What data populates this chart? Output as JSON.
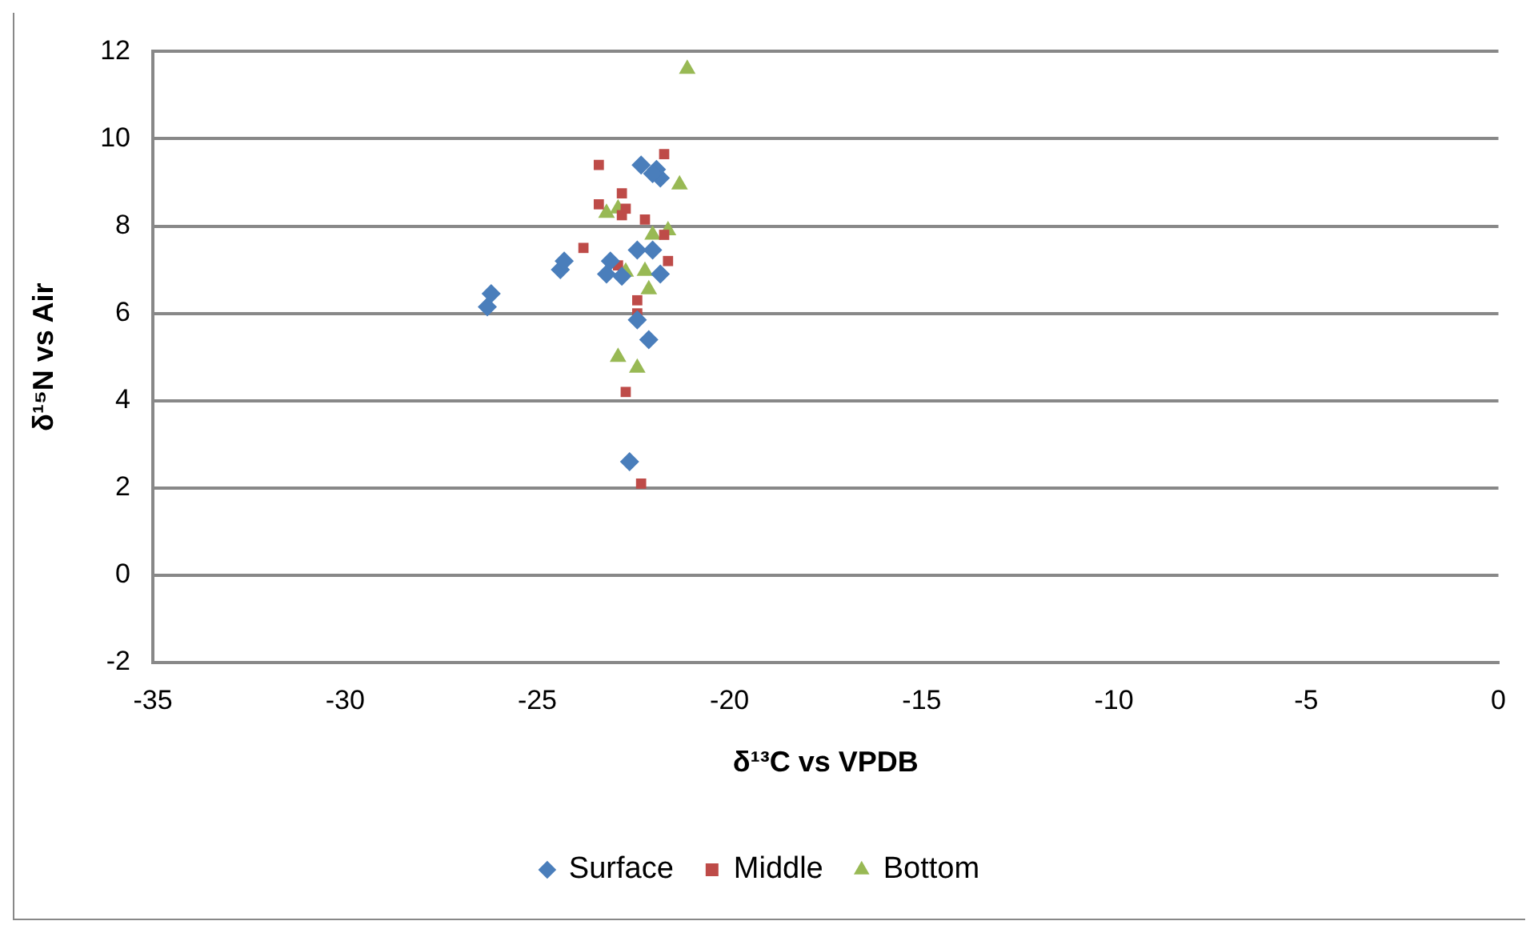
{
  "chart_data": {
    "type": "scatter",
    "xlabel": "δ¹³C vs VPDB",
    "ylabel": "δ¹⁵N vs Air",
    "xlim": [
      -35,
      0
    ],
    "xticks": [
      -35,
      -30,
      -25,
      -20,
      -15,
      -10,
      -5,
      0
    ],
    "ylim": [
      -2,
      12
    ],
    "yticks": [
      -2,
      0,
      2,
      4,
      6,
      8,
      10,
      12
    ],
    "grid": "y",
    "legend": "bottom",
    "series": [
      {
        "name": "Surface",
        "color": "#4a7ebb",
        "marker": "diamond",
        "x": [
          -26.3,
          -26.2,
          -24.4,
          -24.3,
          -23.2,
          -23.1,
          -22.8,
          -22.4,
          -22.0,
          -21.8,
          -22.4,
          -22.1,
          -22.6,
          -22.3,
          -21.9,
          -21.8,
          -22.0
        ],
        "values": [
          6.15,
          6.45,
          7.0,
          7.2,
          6.9,
          7.2,
          6.85,
          7.45,
          7.45,
          6.9,
          5.85,
          5.4,
          2.6,
          9.4,
          9.3,
          9.1,
          9.2
        ]
      },
      {
        "name": "Middle",
        "color": "#be4b48",
        "marker": "square",
        "x": [
          -23.4,
          -21.7,
          -23.4,
          -22.8,
          -22.7,
          -22.2,
          -23.8,
          -22.9,
          -21.7,
          -21.6,
          -22.4,
          -22.4,
          -22.7,
          -22.3,
          -22.8
        ],
        "values": [
          9.4,
          9.65,
          8.5,
          8.75,
          8.4,
          8.15,
          7.5,
          7.1,
          7.8,
          7.2,
          6.3,
          6.0,
          4.2,
          2.1,
          8.25
        ]
      },
      {
        "name": "Bottom",
        "color": "#98b954",
        "marker": "triangle",
        "x": [
          -21.1,
          -21.3,
          -23.2,
          -22.9,
          -22.0,
          -21.6,
          -22.7,
          -22.2,
          -22.1,
          -22.9,
          -22.4
        ],
        "values": [
          11.6,
          8.95,
          8.3,
          8.4,
          7.8,
          7.9,
          6.95,
          6.97,
          6.55,
          5.0,
          4.75
        ]
      }
    ]
  }
}
